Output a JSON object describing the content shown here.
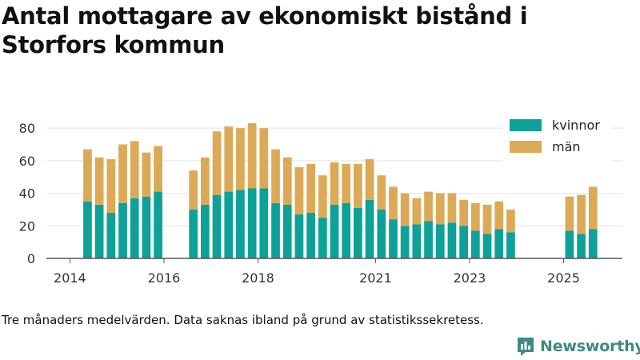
{
  "title": "Antal mottagare av ekonomiskt bistånd i Storfors kommun",
  "caption": "Tre månaders medelvärden. Data saknas ibland på grund av statistikssekretess.",
  "brand": {
    "name": "Newsworthy",
    "logo_icon": "bar-chart-speech-bubble-icon"
  },
  "colors": {
    "kvinnor": "#0ea197",
    "man": "#dcaa56",
    "grid": "#e3e3e3",
    "axis": "#555555"
  },
  "chart_data": {
    "type": "bar",
    "stacked": true,
    "x_unit": "quarter",
    "xlim": [
      "2013-Q3",
      "2025-Q4"
    ],
    "ylim": [
      0,
      85
    ],
    "yticks": [
      0,
      20,
      40,
      60,
      80
    ],
    "xticks": [
      "2014",
      "2016",
      "2018",
      "2021",
      "2023",
      "2025"
    ],
    "xtick_positions": [
      "2014-Q1",
      "2016-Q1",
      "2018-Q1",
      "2020-Q3",
      "2022-Q3",
      "2024-Q3"
    ],
    "grid": true,
    "legend_position": "top-right",
    "categories": [
      "2014-Q2",
      "2014-Q3",
      "2014-Q4",
      "2015-Q1",
      "2015-Q2",
      "2015-Q3",
      "2015-Q4",
      "2016-Q1",
      "2016-Q2",
      "2016-Q3",
      "2016-Q4",
      "2017-Q1",
      "2017-Q2",
      "2017-Q3",
      "2017-Q4",
      "2018-Q1",
      "2018-Q2",
      "2018-Q3",
      "2018-Q4",
      "2019-Q1",
      "2019-Q2",
      "2019-Q3",
      "2019-Q4",
      "2020-Q1",
      "2020-Q2",
      "2020-Q3",
      "2020-Q4",
      "2021-Q1",
      "2021-Q2",
      "2021-Q3",
      "2021-Q4",
      "2022-Q1",
      "2022-Q2",
      "2022-Q3",
      "2022-Q4",
      "2023-Q1",
      "2023-Q2",
      "2023-Q3",
      "2023-Q4",
      "2024-Q1",
      "2024-Q2",
      "2024-Q3",
      "2024-Q4",
      "2025-Q1"
    ],
    "series": [
      {
        "name": "kvinnor",
        "values": [
          35,
          33,
          28,
          34,
          37,
          38,
          41,
          null,
          null,
          30,
          33,
          39,
          41,
          42,
          43,
          43,
          34,
          33,
          27,
          28,
          25,
          33,
          34,
          31,
          36,
          30,
          24,
          20,
          21,
          23,
          21,
          22,
          20,
          17,
          15,
          18,
          16,
          null,
          null,
          null,
          null,
          17,
          15,
          18
        ]
      },
      {
        "name": "män",
        "values": [
          32,
          29,
          33,
          36,
          35,
          27,
          28,
          null,
          null,
          24,
          29,
          39,
          40,
          38,
          40,
          37,
          33,
          29,
          29,
          30,
          26,
          26,
          24,
          27,
          25,
          21,
          20,
          20,
          16,
          18,
          19,
          18,
          16,
          17,
          18,
          17,
          14,
          null,
          null,
          null,
          null,
          21,
          24,
          26
        ]
      }
    ]
  }
}
